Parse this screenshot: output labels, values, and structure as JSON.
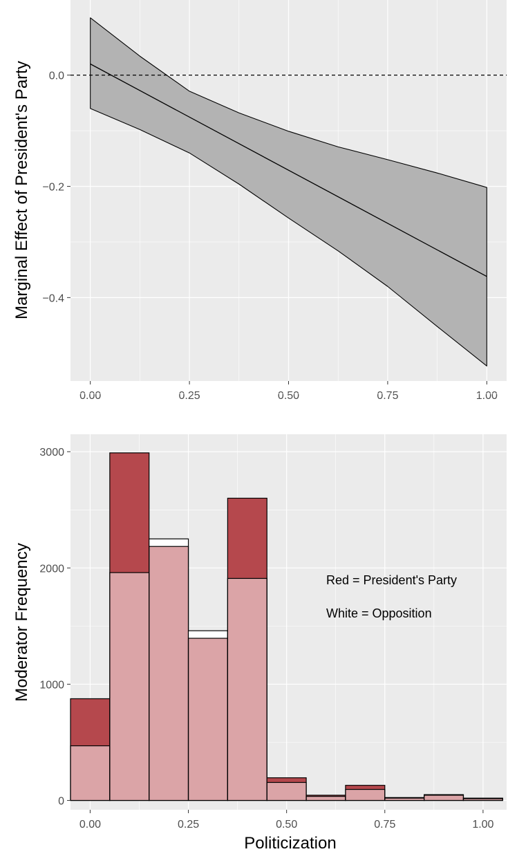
{
  "chart_data": [
    {
      "type": "line",
      "xlabel": "",
      "ylabel": "Marginal Effect of President's Party",
      "xlim": [
        -0.05,
        1.05
      ],
      "ylim": [
        -0.55,
        0.135
      ],
      "x_ticks": [
        0,
        0.25,
        0.5,
        0.75,
        1.0
      ],
      "x_tick_labels": [
        "0.00",
        "0.25",
        "0.50",
        "0.75",
        "1.00"
      ],
      "y_ticks": [
        0.0,
        -0.2,
        -0.4
      ],
      "y_tick_labels": [
        "0.0",
        "−0.2",
        "−0.4"
      ],
      "reference_line": {
        "y": 0,
        "style": "dashed"
      },
      "estimate": {
        "x": [
          0,
          1
        ],
        "y": [
          0.02,
          -0.362
        ]
      },
      "confidence_band": {
        "x": [
          0,
          0.125,
          0.25,
          0.375,
          0.5,
          0.625,
          0.75,
          0.875,
          1.0
        ],
        "upper": [
          0.103,
          0.034,
          -0.029,
          -0.068,
          -0.101,
          -0.129,
          -0.152,
          -0.176,
          -0.202
        ],
        "lower": [
          -0.06,
          -0.098,
          -0.14,
          -0.196,
          -0.257,
          -0.316,
          -0.38,
          -0.452,
          -0.523
        ]
      },
      "grid": true,
      "colors": {
        "panel": "#ebebeb",
        "grid": "#ffffff",
        "band": "#b3b3b3",
        "line": "#000000"
      }
    },
    {
      "type": "bar",
      "xlabel": "Politicization",
      "ylabel": "Moderator Frequency",
      "xlim": [
        -0.05,
        1.06
      ],
      "ylim": [
        -80,
        3150
      ],
      "x_ticks": [
        0,
        0.25,
        0.5,
        0.75,
        1.0
      ],
      "x_tick_labels": [
        "0.00",
        "0.25",
        "0.50",
        "0.75",
        "1.00"
      ],
      "y_ticks": [
        0,
        1000,
        2000,
        3000
      ],
      "y_tick_labels": [
        "0",
        "1000",
        "2000",
        "3000"
      ],
      "bin_centers": [
        0.0,
        0.1,
        0.2,
        0.3,
        0.4,
        0.5,
        0.6,
        0.7,
        0.8,
        0.9,
        1.0
      ],
      "bin_width": 0.1,
      "series": [
        {
          "name": "President's Party",
          "values": [
            875,
            2990,
            2185,
            1395,
            2600,
            195,
            45,
            130,
            20,
            50,
            20
          ],
          "color": "#b5484d"
        },
        {
          "name": "Opposition",
          "values": [
            470,
            1960,
            2250,
            1460,
            1910,
            155,
            35,
            95,
            25,
            45,
            15
          ],
          "color": "#ffffff"
        }
      ],
      "overlap_color": "#dba4a7",
      "annotations": [
        "Red = President's Party",
        "White = Opposition"
      ],
      "grid": true
    }
  ]
}
